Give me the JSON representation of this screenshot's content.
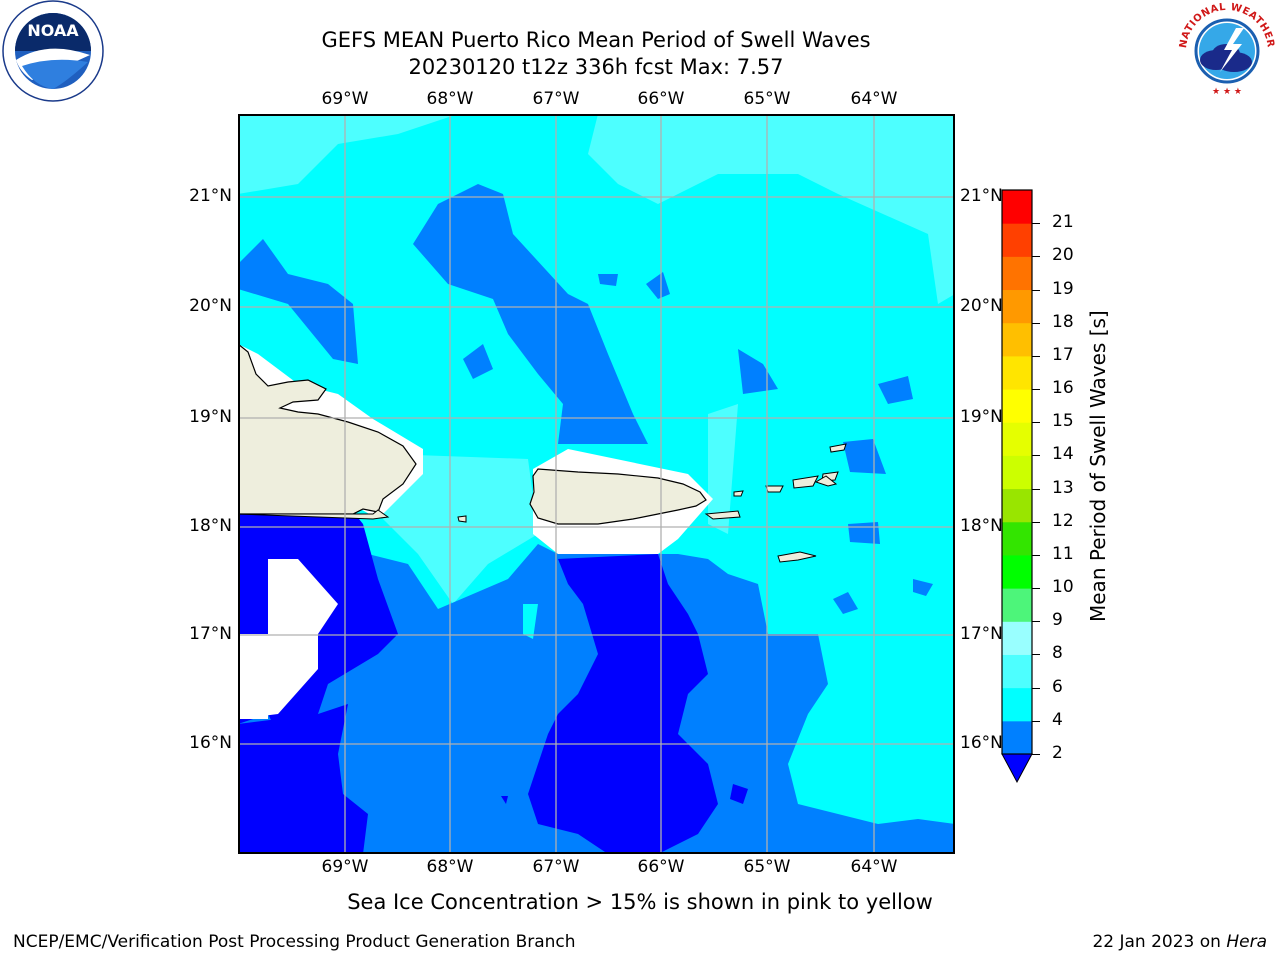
{
  "header": {
    "title_line1": "GEFS MEAN Puerto Rico Mean Period of Swell Waves",
    "title_line2": "20230120 t12z 336h fcst   Max: 7.57"
  },
  "logos": {
    "left": {
      "name": "noaa-logo",
      "text": "NOAA",
      "ring_text": "NATIONAL OCEANIC AND ATMOSPHERIC ADMINISTRATION · U.S. DEPARTMENT OF COMMERCE"
    },
    "right": {
      "name": "nws-logo",
      "ring_text": "NATIONAL WEATHER SERVICE"
    }
  },
  "map": {
    "lon_ticks": [
      "69°W",
      "68°W",
      "67°W",
      "66°W",
      "65°W",
      "64°W"
    ],
    "lat_ticks": [
      "21°N",
      "20°N",
      "19°N",
      "18°N",
      "17°N",
      "16°N"
    ],
    "colors": {
      "lt2": "#0000ff",
      "2to4": "#0080ff",
      "4to6": "#00ffff",
      "6to8": "#4dffff",
      "land": "#eeeedd",
      "masked": "#ffffff",
      "grid": "#b0b0b0"
    }
  },
  "colorbar": {
    "label": "Mean Period of Swell Waves [s]",
    "ticks": [
      "2",
      "4",
      "6",
      "8",
      "9",
      "10",
      "11",
      "12",
      "13",
      "14",
      "15",
      "16",
      "17",
      "18",
      "19",
      "20",
      "21"
    ],
    "colors": [
      "#0080ff",
      "#00ffff",
      "#4dffff",
      "#99ffff",
      "#4df57a",
      "#00ff00",
      "#33e500",
      "#99e500",
      "#ccff00",
      "#e5ff00",
      "#ffff00",
      "#ffe500",
      "#ffbf00",
      "#ff9900",
      "#ff7300",
      "#ff4000",
      "#ff0000"
    ],
    "extend_color": "#0000ff"
  },
  "note": "Sea Ice Concentration > 15% is shown in pink to yellow",
  "footer": {
    "left": "NCEP/EMC/Verification Post Processing Product Generation Branch",
    "right_date": "22 Jan 2023 on ",
    "right_host": "Hera"
  }
}
